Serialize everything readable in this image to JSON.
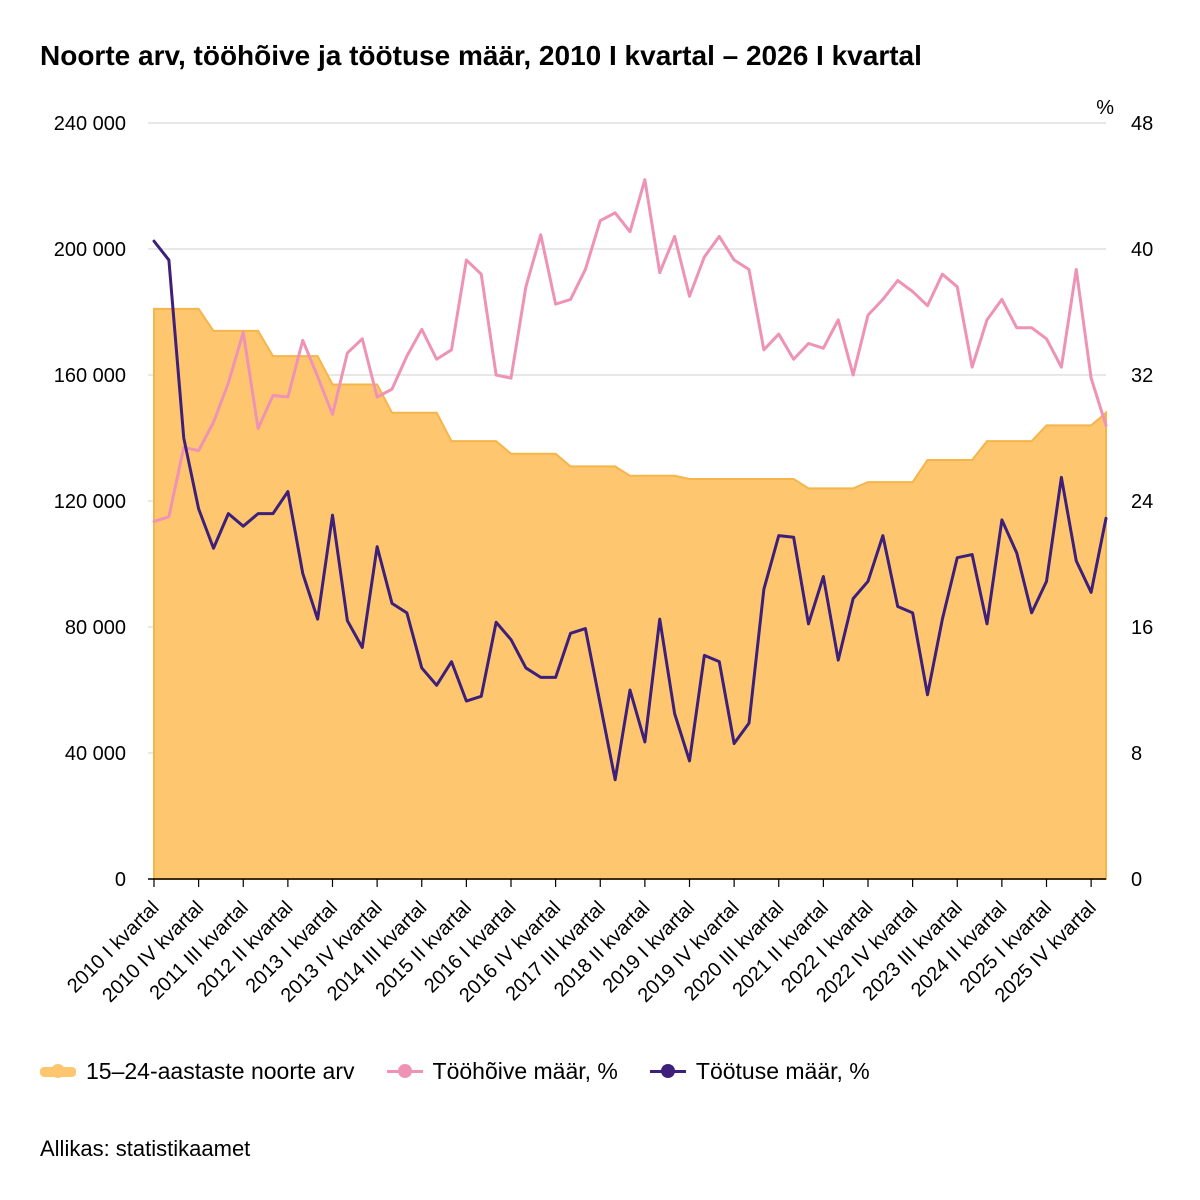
{
  "colors": {
    "population": "#FEC76F",
    "employment": "#EE93B5",
    "unemployment": "#3E1F7A",
    "grid": "#D9D9D9",
    "axis": "#000000"
  },
  "legend": {
    "population": "15–24-aastaste noorte arv",
    "employment": "Tööhõive määr, %",
    "unemployment": "Töötuse määr, %"
  },
  "source": "Allikas: statistikaamet",
  "chart_data": {
    "type": "line",
    "title": "Noorte arv, tööhõive ja töötuse määr, 2010 I kvartal – 2026 I kvartal",
    "left_axis": {
      "min": 0,
      "max": 240000,
      "ticks": [
        0,
        40000,
        80000,
        120000,
        160000,
        200000,
        240000
      ],
      "tick_labels": [
        "0",
        "40 000",
        "80 000",
        "120 000",
        "160 000",
        "200 000",
        "240 000"
      ]
    },
    "right_axis": {
      "unit": "%",
      "min": 0,
      "max": 48,
      "ticks": [
        0,
        8,
        16,
        24,
        32,
        40,
        48
      ],
      "tick_labels": [
        "0",
        "8",
        "16",
        "24",
        "32",
        "40",
        "48"
      ]
    },
    "x_tick_labels": [
      "2010 I kvartal",
      "2010 IV kvartal",
      "2011 III kvartal",
      "2012 II kvartal",
      "2013 I kvartal",
      "2013 IV kvartal",
      "2014 III kvartal",
      "2015 II kvartal",
      "2016 I kvartal",
      "2016 IV kvartal",
      "2017 III kvartal",
      "2018 II kvartal",
      "2019 I kvartal",
      "2019 IV kvartal",
      "2020 III kvartal",
      "2021 II kvartal",
      "2022 I kvartal",
      "2022 IV kvartal",
      "2023 III kvartal",
      "2024 II kvartal",
      "2025 I kvartal",
      "2025 IV kvartal"
    ],
    "x_tick_every": 3,
    "x_first": "2010 I kvartal",
    "x_last": "2026 I kvartal",
    "grid": true,
    "legend_position": "bottom",
    "series": [
      {
        "name": "15–24-aastaste noorte arv",
        "type": "area",
        "axis": "left",
        "values": [
          181000,
          181000,
          181000,
          181000,
          174000,
          174000,
          174000,
          174000,
          166000,
          166000,
          166000,
          166000,
          157000,
          157000,
          157000,
          157000,
          148000,
          148000,
          148000,
          148000,
          139000,
          139000,
          139000,
          139000,
          135000,
          135000,
          135000,
          135000,
          131000,
          131000,
          131000,
          131000,
          128000,
          128000,
          128000,
          128000,
          127000,
          127000,
          127000,
          127000,
          127000,
          127000,
          127000,
          127000,
          124000,
          124000,
          124000,
          124000,
          126000,
          126000,
          126000,
          126000,
          133000,
          133000,
          133000,
          133000,
          139000,
          139000,
          139000,
          139000,
          144000,
          144000,
          144000,
          144000,
          148000
        ]
      },
      {
        "name": "Tööhõive määr, %",
        "type": "line",
        "axis": "right",
        "values": [
          22.7,
          23.0,
          27.4,
          27.2,
          29.0,
          31.5,
          34.7,
          28.6,
          30.7,
          30.6,
          34.2,
          31.9,
          29.5,
          33.4,
          34.3,
          30.6,
          31.1,
          33.2,
          34.9,
          33.0,
          33.6,
          39.3,
          38.4,
          32.0,
          31.8,
          37.6,
          40.9,
          36.5,
          36.8,
          38.7,
          41.8,
          42.3,
          41.1,
          44.4,
          38.5,
          40.8,
          37.0,
          39.5,
          40.8,
          39.3,
          38.7,
          33.6,
          34.6,
          33.0,
          34.0,
          33.7,
          35.5,
          32.0,
          35.8,
          36.8,
          38.0,
          37.3,
          36.4,
          38.4,
          37.6,
          32.5,
          35.5,
          36.8,
          35.0,
          35.0,
          34.3,
          32.5,
          38.7,
          31.8,
          28.8
        ]
      },
      {
        "name": "Töötuse määr, %",
        "type": "line",
        "axis": "right",
        "values": [
          40.5,
          39.3,
          28.0,
          23.5,
          21.0,
          23.2,
          22.4,
          23.2,
          23.2,
          24.6,
          19.4,
          16.5,
          23.1,
          16.4,
          14.7,
          21.1,
          17.5,
          16.9,
          13.4,
          12.3,
          13.8,
          11.3,
          11.6,
          16.3,
          15.2,
          13.4,
          12.8,
          12.8,
          15.6,
          15.9,
          11.1,
          6.3,
          12.0,
          8.7,
          16.5,
          10.5,
          7.5,
          14.2,
          13.8,
          8.6,
          9.9,
          18.4,
          21.8,
          21.7,
          16.2,
          19.2,
          13.9,
          17.8,
          18.9,
          21.8,
          17.3,
          16.9,
          11.7,
          16.5,
          20.4,
          20.6,
          16.2,
          22.8,
          20.7,
          16.9,
          18.9,
          25.5,
          20.2,
          18.2,
          22.9
        ]
      }
    ]
  }
}
